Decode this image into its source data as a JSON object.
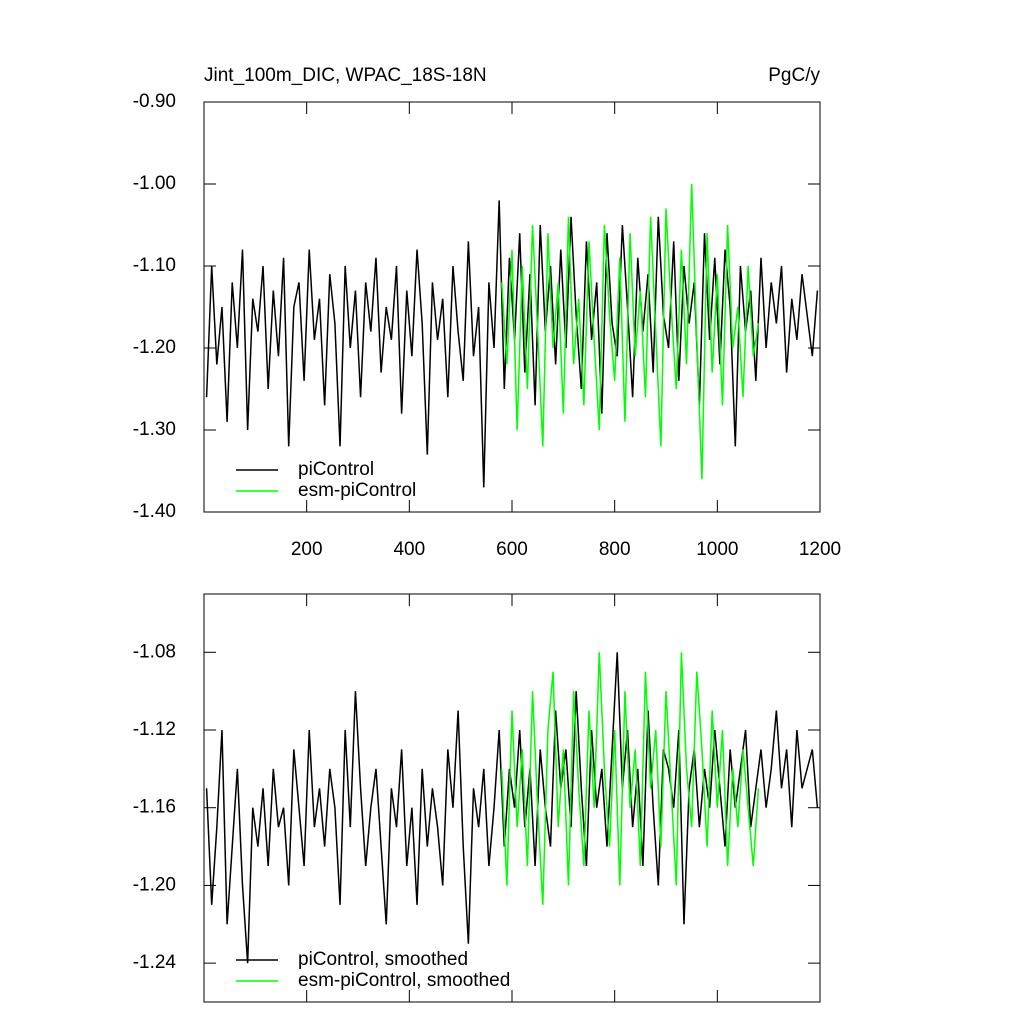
{
  "chart_data": [
    {
      "type": "line",
      "title": "Jint_100m_DIC, WPAC_18S-18N",
      "units": "PgC/y",
      "xlim": [
        0,
        1200
      ],
      "xticks": [
        200,
        400,
        600,
        800,
        1000,
        1200
      ],
      "xtick_labels": true,
      "ylim": [
        -1.4,
        -0.9
      ],
      "yticks": [
        {
          "value": -1.4,
          "label": "-1.40"
        },
        {
          "value": -1.3,
          "label": "-1.30"
        },
        {
          "value": -1.2,
          "label": "-1.20"
        },
        {
          "value": -1.1,
          "label": "-1.10"
        },
        {
          "value": -1.0,
          "label": "-1.00"
        },
        {
          "value": -0.9,
          "label": "-0.90"
        }
      ],
      "legend": "lower left",
      "series": [
        {
          "name": "piControl",
          "color": "#000000",
          "x": [
            5,
            15,
            25,
            35,
            45,
            55,
            65,
            75,
            85,
            95,
            105,
            115,
            125,
            135,
            145,
            155,
            165,
            175,
            185,
            195,
            205,
            215,
            225,
            235,
            245,
            255,
            265,
            275,
            285,
            295,
            305,
            315,
            325,
            335,
            345,
            355,
            365,
            375,
            385,
            395,
            405,
            415,
            425,
            435,
            445,
            455,
            465,
            475,
            485,
            495,
            505,
            515,
            525,
            535,
            545,
            555,
            565,
            575,
            585,
            595,
            605,
            615,
            625,
            635,
            645,
            655,
            665,
            675,
            685,
            695,
            705,
            715,
            725,
            735,
            745,
            755,
            765,
            775,
            785,
            795,
            805,
            815,
            825,
            835,
            845,
            855,
            865,
            875,
            885,
            895,
            905,
            915,
            925,
            935,
            945,
            955,
            965,
            975,
            985,
            995,
            1005,
            1015,
            1025,
            1035,
            1045,
            1055,
            1065,
            1075,
            1085,
            1095,
            1105,
            1115,
            1125,
            1135,
            1145,
            1155,
            1165,
            1175,
            1185,
            1195
          ],
          "values": [
            -1.26,
            -1.1,
            -1.22,
            -1.15,
            -1.29,
            -1.12,
            -1.2,
            -1.08,
            -1.3,
            -1.14,
            -1.18,
            -1.1,
            -1.25,
            -1.13,
            -1.21,
            -1.09,
            -1.32,
            -1.15,
            -1.12,
            -1.24,
            -1.08,
            -1.19,
            -1.14,
            -1.27,
            -1.11,
            -1.17,
            -1.32,
            -1.1,
            -1.2,
            -1.13,
            -1.26,
            -1.12,
            -1.18,
            -1.09,
            -1.23,
            -1.15,
            -1.19,
            -1.1,
            -1.28,
            -1.13,
            -1.21,
            -1.08,
            -1.17,
            -1.33,
            -1.12,
            -1.19,
            -1.14,
            -1.26,
            -1.1,
            -1.18,
            -1.24,
            -1.07,
            -1.21,
            -1.15,
            -1.37,
            -1.12,
            -1.2,
            -1.02,
            -1.25,
            -1.09,
            -1.19,
            -1.06,
            -1.23,
            -1.11,
            -1.27,
            -1.05,
            -1.18,
            -1.1,
            -1.22,
            -1.08,
            -1.2,
            -1.04,
            -1.16,
            -1.25,
            -1.07,
            -1.19,
            -1.12,
            -1.28,
            -1.06,
            -1.17,
            -1.21,
            -1.05,
            -1.15,
            -1.26,
            -1.09,
            -1.18,
            -1.11,
            -1.23,
            -1.04,
            -1.16,
            -1.2,
            -1.07,
            -1.24,
            -1.1,
            -1.17,
            -1.12,
            -1.27,
            -1.06,
            -1.19,
            -1.09,
            -1.22,
            -1.08,
            -1.15,
            -1.32,
            -1.1,
            -1.18,
            -1.13,
            -1.24,
            -1.09,
            -1.2,
            -1.12,
            -1.17,
            -1.1,
            -1.23,
            -1.14,
            -1.19,
            -1.11,
            -1.16,
            -1.21,
            -1.13
          ]
        },
        {
          "name": "esm-piControl",
          "color": "#00ff00",
          "x": [
            580,
            590,
            600,
            610,
            620,
            630,
            640,
            650,
            660,
            670,
            680,
            690,
            700,
            710,
            720,
            730,
            740,
            750,
            760,
            770,
            780,
            790,
            800,
            810,
            820,
            830,
            840,
            850,
            860,
            870,
            880,
            890,
            900,
            910,
            920,
            930,
            940,
            950,
            960,
            970,
            980,
            990,
            1000,
            1010,
            1020,
            1030,
            1040,
            1050,
            1060,
            1070,
            1080
          ],
          "values": [
            -1.12,
            -1.22,
            -1.08,
            -1.3,
            -1.1,
            -1.25,
            -1.05,
            -1.18,
            -1.32,
            -1.06,
            -1.2,
            -1.12,
            -1.28,
            -1.04,
            -1.22,
            -1.14,
            -1.27,
            -1.07,
            -1.19,
            -1.3,
            -1.05,
            -1.16,
            -1.24,
            -1.09,
            -1.29,
            -1.06,
            -1.21,
            -1.13,
            -1.26,
            -1.04,
            -1.18,
            -1.32,
            -1.03,
            -1.15,
            -1.25,
            -1.08,
            -1.22,
            -1.0,
            -1.19,
            -1.36,
            -1.06,
            -1.23,
            -1.11,
            -1.27,
            -1.05,
            -1.2,
            -1.15,
            -1.26,
            -1.1,
            -1.21,
            -1.17
          ]
        }
      ]
    },
    {
      "type": "line",
      "xlim": [
        0,
        1200
      ],
      "xticks": [
        200,
        400,
        600,
        800,
        1000,
        1200
      ],
      "xtick_labels": false,
      "ylim": [
        -1.26,
        -1.05
      ],
      "yticks": [
        {
          "value": -1.24,
          "label": "-1.24"
        },
        {
          "value": -1.2,
          "label": "-1.20"
        },
        {
          "value": -1.16,
          "label": "-1.16"
        },
        {
          "value": -1.12,
          "label": "-1.12"
        },
        {
          "value": -1.08,
          "label": "-1.08"
        }
      ],
      "legend": "lower left",
      "series": [
        {
          "name": "piControl, smoothed",
          "color": "#000000",
          "x": [
            5,
            15,
            25,
            35,
            45,
            55,
            65,
            75,
            85,
            95,
            105,
            115,
            125,
            135,
            145,
            155,
            165,
            175,
            185,
            195,
            205,
            215,
            225,
            235,
            245,
            255,
            265,
            275,
            285,
            295,
            305,
            315,
            325,
            335,
            345,
            355,
            365,
            375,
            385,
            395,
            405,
            415,
            425,
            435,
            445,
            455,
            465,
            475,
            485,
            495,
            505,
            515,
            525,
            535,
            545,
            555,
            565,
            575,
            585,
            595,
            605,
            615,
            625,
            635,
            645,
            655,
            665,
            675,
            685,
            695,
            705,
            715,
            725,
            735,
            745,
            755,
            765,
            775,
            785,
            795,
            805,
            815,
            825,
            835,
            845,
            855,
            865,
            875,
            885,
            895,
            905,
            915,
            925,
            935,
            945,
            955,
            965,
            975,
            985,
            995,
            1005,
            1015,
            1025,
            1035,
            1045,
            1055,
            1065,
            1075,
            1085,
            1095,
            1105,
            1115,
            1125,
            1135,
            1145,
            1155,
            1165,
            1175,
            1185,
            1195
          ],
          "values": [
            -1.15,
            -1.21,
            -1.17,
            -1.12,
            -1.22,
            -1.18,
            -1.14,
            -1.2,
            -1.24,
            -1.16,
            -1.18,
            -1.15,
            -1.19,
            -1.14,
            -1.17,
            -1.16,
            -1.2,
            -1.13,
            -1.16,
            -1.19,
            -1.12,
            -1.17,
            -1.15,
            -1.18,
            -1.14,
            -1.16,
            -1.21,
            -1.12,
            -1.17,
            -1.1,
            -1.15,
            -1.19,
            -1.16,
            -1.14,
            -1.18,
            -1.22,
            -1.15,
            -1.17,
            -1.13,
            -1.19,
            -1.16,
            -1.21,
            -1.14,
            -1.18,
            -1.15,
            -1.17,
            -1.2,
            -1.13,
            -1.16,
            -1.11,
            -1.18,
            -1.23,
            -1.15,
            -1.17,
            -1.14,
            -1.19,
            -1.16,
            -1.12,
            -1.18,
            -1.14,
            -1.16,
            -1.12,
            -1.17,
            -1.14,
            -1.19,
            -1.13,
            -1.16,
            -1.18,
            -1.11,
            -1.15,
            -1.13,
            -1.17,
            -1.1,
            -1.15,
            -1.19,
            -1.12,
            -1.16,
            -1.14,
            -1.18,
            -1.13,
            -1.08,
            -1.15,
            -1.12,
            -1.17,
            -1.14,
            -1.19,
            -1.11,
            -1.16,
            -1.2,
            -1.13,
            -1.14,
            -1.16,
            -1.12,
            -1.22,
            -1.15,
            -1.13,
            -1.17,
            -1.14,
            -1.16,
            -1.12,
            -1.15,
            -1.18,
            -1.13,
            -1.16,
            -1.14,
            -1.12,
            -1.17,
            -1.15,
            -1.13,
            -1.16,
            -1.14,
            -1.11,
            -1.15,
            -1.13,
            -1.17,
            -1.12,
            -1.15,
            -1.14,
            -1.13,
            -1.16
          ]
        },
        {
          "name": "esm-piControl, smoothed",
          "color": "#00ff00",
          "x": [
            580,
            590,
            600,
            610,
            620,
            630,
            640,
            650,
            660,
            670,
            680,
            690,
            700,
            710,
            720,
            730,
            740,
            750,
            760,
            770,
            780,
            790,
            800,
            810,
            820,
            830,
            840,
            850,
            860,
            870,
            880,
            890,
            900,
            910,
            920,
            930,
            940,
            950,
            960,
            970,
            980,
            990,
            1000,
            1010,
            1020,
            1030,
            1040,
            1050,
            1060,
            1070,
            1080
          ],
          "values": [
            -1.14,
            -1.2,
            -1.11,
            -1.17,
            -1.13,
            -1.19,
            -1.1,
            -1.16,
            -1.21,
            -1.12,
            -1.09,
            -1.17,
            -1.13,
            -1.2,
            -1.1,
            -1.15,
            -1.19,
            -1.11,
            -1.16,
            -1.08,
            -1.14,
            -1.18,
            -1.12,
            -1.2,
            -1.1,
            -1.16,
            -1.13,
            -1.19,
            -1.09,
            -1.15,
            -1.12,
            -1.18,
            -1.1,
            -1.15,
            -1.2,
            -1.08,
            -1.14,
            -1.17,
            -1.09,
            -1.13,
            -1.18,
            -1.11,
            -1.16,
            -1.12,
            -1.19,
            -1.14,
            -1.17,
            -1.13,
            -1.16,
            -1.19,
            -1.15
          ]
        }
      ]
    }
  ]
}
